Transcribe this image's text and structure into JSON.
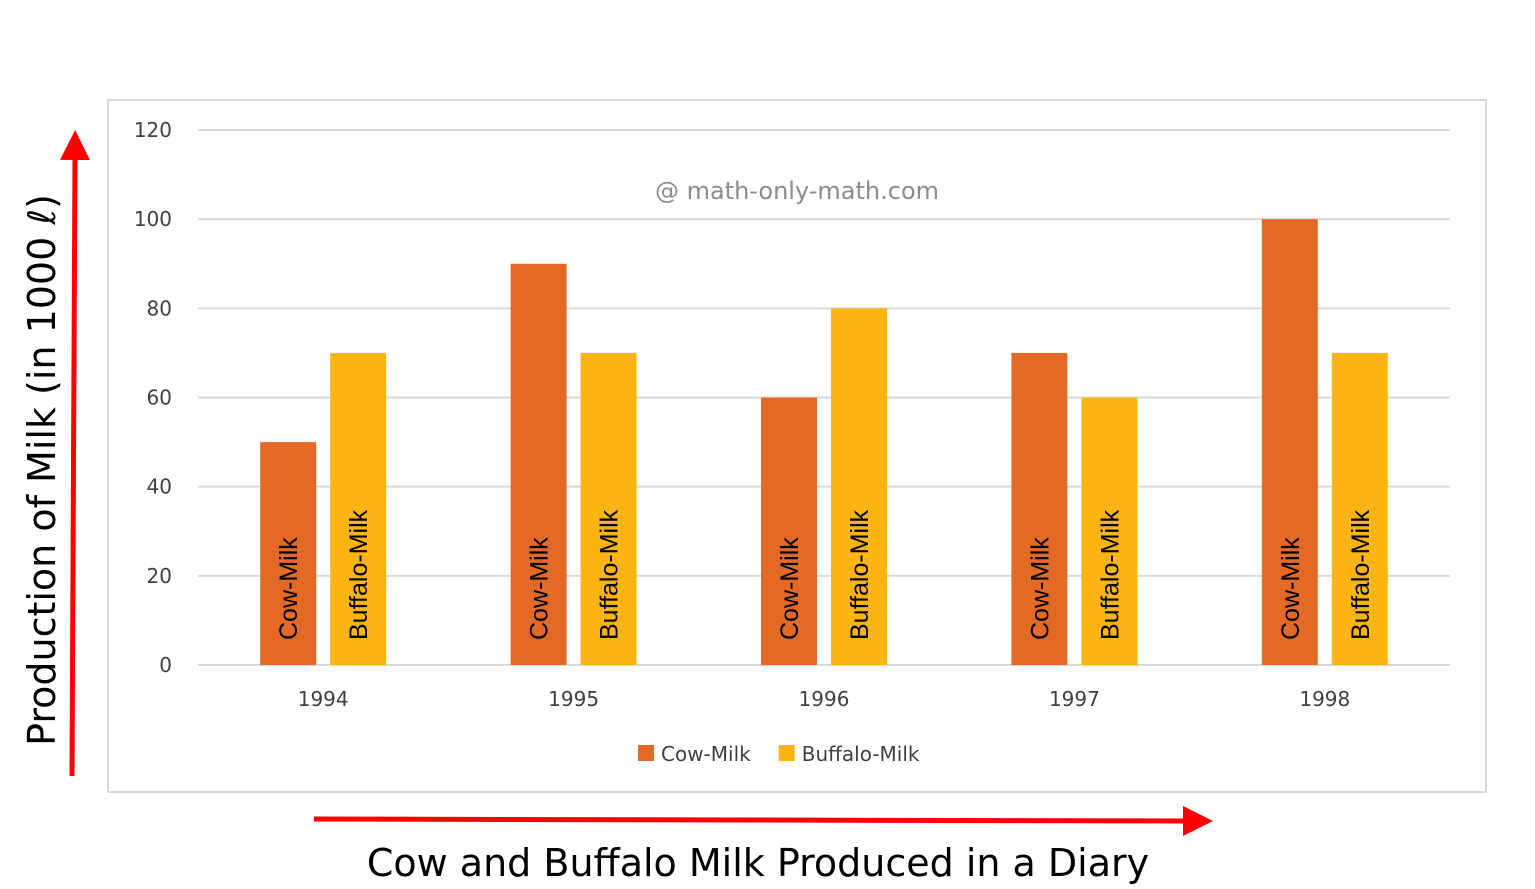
{
  "chart_data": {
    "type": "bar",
    "title": "",
    "categories": [
      "1994",
      "1995",
      "1996",
      "1997",
      "1998"
    ],
    "series": [
      {
        "name": "Cow-Milk",
        "color": "#e36a26",
        "values": [
          50,
          90,
          60,
          70,
          100
        ]
      },
      {
        "name": "Buffalo-Milk",
        "color": "#fbb412",
        "values": [
          70,
          70,
          80,
          60,
          70
        ]
      }
    ],
    "yticks": [
      0,
      20,
      40,
      60,
      80,
      100,
      120
    ],
    "ylim": [
      0,
      120
    ],
    "ylabel": "Production of Milk (in 1000 ℓ)",
    "xlabel": "Cow and Buffalo Milk Produced in a Diary",
    "watermark": "@ math-only-math.com",
    "grid": true,
    "legend_position": "bottom",
    "arrow_color": "#ff0000"
  }
}
